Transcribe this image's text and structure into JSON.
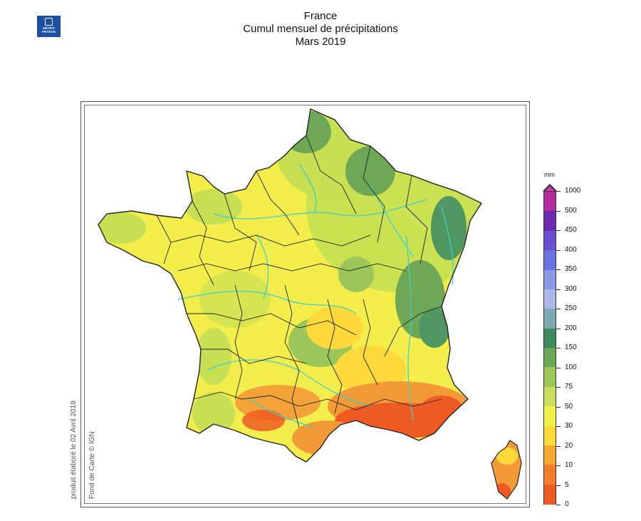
{
  "titles": {
    "line1": "France",
    "line2": "Cumul mensuel de précipitations",
    "line3": "Mars 2019"
  },
  "logo": {
    "icon": "meteo-france-logo",
    "line1": "MÉTÉO",
    "line2": "FRANCE"
  },
  "credits": {
    "produced": "produit élaboré le 02 Avril 2019",
    "basemap": "Fond de Carte © IGN"
  },
  "legend": {
    "unit": "mm",
    "labels": [
      "1000",
      "500",
      "450",
      "400",
      "350",
      "300",
      "250",
      "200",
      "150",
      "100",
      "75",
      "50",
      "30",
      "20",
      "10",
      "5",
      "0"
    ],
    "colors": [
      "#b22a9e",
      "#6a2bb0",
      "#6a4fd0",
      "#6c74e3",
      "#8a9ae9",
      "#aab8e6",
      "#7faab4",
      "#3f8a5b",
      "#6aa856",
      "#9cc65a",
      "#c9e05a",
      "#f1f04a",
      "#ffd93a",
      "#f6a830",
      "#f37d2a",
      "#ef5a23"
    ],
    "colors_order": "top-to-bottom"
  },
  "map": {
    "region": "France métropolitaine + Corse",
    "palette": {
      "sea": "#ffffff",
      "dry_0_5": "#ef5a23",
      "low_10_20": "#f39a36",
      "low_20_30": "#ffd93a",
      "mid_30_50": "#f3ee4c",
      "mid_50_75": "#c7df52",
      "high_75_100": "#9cc65a",
      "high_100_150": "#6ea857",
      "high_150_200": "#4f9660",
      "rivers": "#3fd0c8",
      "borders": "#222222"
    }
  }
}
